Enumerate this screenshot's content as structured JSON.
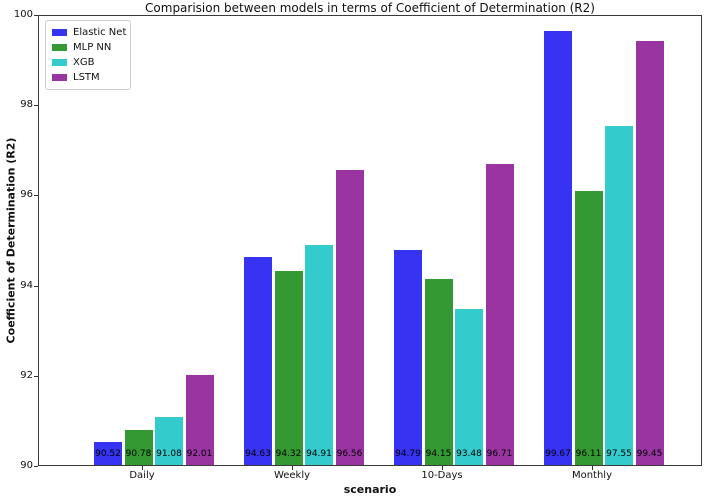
{
  "chart_data": {
    "type": "bar",
    "title": "Comparision between models in terms of Coefficient of Determination (R2)",
    "xlabel": "scenario",
    "ylabel": "Coefficient of Determination (R2)",
    "ylim": [
      90,
      100
    ],
    "yticks": [
      90,
      92,
      94,
      96,
      98,
      100
    ],
    "categories": [
      "Daily",
      "Weekly",
      "10-Days",
      "Monthly"
    ],
    "series": [
      {
        "name": "Elastic Net",
        "color": "#3633f2",
        "values": [
          90.52,
          94.63,
          94.79,
          99.67
        ]
      },
      {
        "name": "MLP NN",
        "color": "#359933",
        "values": [
          90.78,
          94.32,
          94.15,
          96.11
        ]
      },
      {
        "name": "XGB",
        "color": "#33cbcb",
        "values": [
          91.08,
          94.91,
          93.48,
          97.55
        ]
      },
      {
        "name": "LSTM",
        "color": "#9934a0",
        "values": [
          92.01,
          96.56,
          96.71,
          99.45
        ]
      }
    ],
    "bar_value_labels": [
      [
        "90.52",
        "94.63",
        "94.79",
        "99.67"
      ],
      [
        "90.78",
        "94.32",
        "94.15",
        "96.11"
      ],
      [
        "91.08",
        "94.91",
        "93.48",
        "97.55"
      ],
      [
        "92.01",
        "96.56",
        "96.71",
        "99.45"
      ]
    ],
    "legend_position": "upper left",
    "grid": false
  }
}
